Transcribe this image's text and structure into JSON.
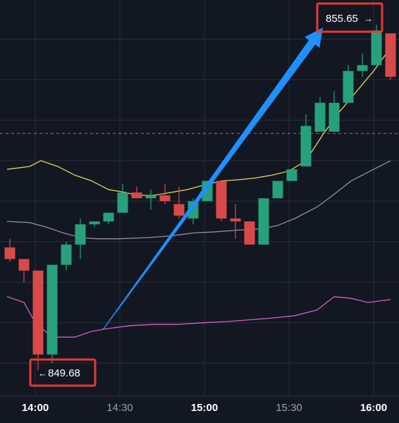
{
  "colors": {
    "background": "#131722",
    "grid": "#2a2e39",
    "up": "#26a17b",
    "down": "#d84a4a",
    "upper_line": "#e3d75a",
    "middle_line": "#8f8fa0",
    "lower_line": "#d25fc0",
    "arrow": "#1e90ff",
    "annotation_box": "#e53935",
    "text": "#ffffff",
    "axis_text": "#9aa0ad",
    "reference_line": "#d84a4a"
  },
  "annotations": {
    "high_label": "855.65",
    "high_arrow": "→",
    "low_label": "849.68",
    "low_arrow": "←"
  },
  "chart_data": {
    "type": "candlestick",
    "title": "",
    "xlabel": "",
    "ylabel": "",
    "x_ticks": [
      "14:00",
      "14:30",
      "15:00",
      "15:30",
      "16:00"
    ],
    "x_tick_bold": [
      true,
      false,
      true,
      false,
      true
    ],
    "x_range": [
      "13:50",
      "16:06"
    ],
    "y_range": [
      849.2,
      856.4
    ],
    "grid": true,
    "reference_line": 853.77,
    "candles": [
      {
        "t": "13:51",
        "o": 851.8,
        "h": 851.95,
        "l": 851.55,
        "c": 851.6
      },
      {
        "t": "13:56",
        "o": 851.6,
        "h": 851.6,
        "l": 851.2,
        "c": 851.4
      },
      {
        "t": "14:01",
        "o": 851.4,
        "h": 851.4,
        "l": 849.68,
        "c": 849.95
      },
      {
        "t": "14:06",
        "o": 849.95,
        "h": 851.5,
        "l": 849.8,
        "c": 851.5
      },
      {
        "t": "14:11",
        "o": 851.5,
        "h": 851.9,
        "l": 851.4,
        "c": 851.85
      },
      {
        "t": "14:16",
        "o": 851.85,
        "h": 852.3,
        "l": 851.6,
        "c": 852.2
      },
      {
        "t": "14:21",
        "o": 852.2,
        "h": 852.25,
        "l": 852.15,
        "c": 852.25
      },
      {
        "t": "14:26",
        "o": 852.25,
        "h": 852.4,
        "l": 852.2,
        "c": 852.4
      },
      {
        "t": "14:31",
        "o": 852.4,
        "h": 852.9,
        "l": 852.4,
        "c": 852.75
      },
      {
        "t": "14:36",
        "o": 852.75,
        "h": 852.85,
        "l": 852.65,
        "c": 852.65
      },
      {
        "t": "14:41",
        "o": 852.65,
        "h": 852.8,
        "l": 852.45,
        "c": 852.7
      },
      {
        "t": "14:46",
        "o": 852.7,
        "h": 852.9,
        "l": 852.55,
        "c": 852.6
      },
      {
        "t": "14:51",
        "o": 852.55,
        "h": 852.85,
        "l": 852.3,
        "c": 852.35
      },
      {
        "t": "14:56",
        "o": 852.3,
        "h": 852.65,
        "l": 852.2,
        "c": 852.6
      },
      {
        "t": "15:01",
        "o": 852.6,
        "h": 852.95,
        "l": 852.6,
        "c": 852.95
      },
      {
        "t": "15:06",
        "o": 852.95,
        "h": 852.95,
        "l": 852.25,
        "c": 852.3
      },
      {
        "t": "15:11",
        "o": 852.3,
        "h": 852.55,
        "l": 851.95,
        "c": 852.25
      },
      {
        "t": "15:16",
        "o": 852.25,
        "h": 852.25,
        "l": 851.85,
        "c": 851.85
      },
      {
        "t": "15:21",
        "o": 851.85,
        "h": 852.65,
        "l": 851.85,
        "c": 852.65
      },
      {
        "t": "15:26",
        "o": 852.65,
        "h": 852.95,
        "l": 852.65,
        "c": 852.95
      },
      {
        "t": "15:31",
        "o": 852.95,
        "h": 853.15,
        "l": 852.95,
        "c": 853.15
      },
      {
        "t": "15:36",
        "o": 853.2,
        "h": 854.1,
        "l": 853.2,
        "c": 853.9
      },
      {
        "t": "15:41",
        "o": 853.8,
        "h": 854.4,
        "l": 853.8,
        "c": 854.3
      },
      {
        "t": "15:46",
        "o": 853.8,
        "h": 854.5,
        "l": 853.8,
        "c": 854.3
      },
      {
        "t": "15:51",
        "o": 854.3,
        "h": 854.95,
        "l": 854.3,
        "c": 854.85
      },
      {
        "t": "15:56",
        "o": 854.85,
        "h": 855.15,
        "l": 854.75,
        "c": 854.95
      },
      {
        "t": "16:01",
        "o": 854.95,
        "h": 855.65,
        "l": 854.95,
        "c": 855.55
      },
      {
        "t": "16:06",
        "o": 855.5,
        "h": 855.5,
        "l": 854.7,
        "c": 854.75
      }
    ],
    "series": [
      {
        "color_key": "upper_line",
        "points": [
          [
            "13:50",
            853.15
          ],
          [
            "13:58",
            853.2
          ],
          [
            "14:02",
            853.3
          ],
          [
            "14:08",
            853.2
          ],
          [
            "14:14",
            853.05
          ],
          [
            "14:20",
            852.95
          ],
          [
            "14:26",
            852.8
          ],
          [
            "14:32",
            852.75
          ],
          [
            "14:36",
            852.7
          ],
          [
            "14:42",
            852.7
          ],
          [
            "14:48",
            852.75
          ],
          [
            "14:54",
            852.8
          ],
          [
            "15:00",
            852.88
          ],
          [
            "15:06",
            852.95
          ],
          [
            "15:12",
            852.97
          ],
          [
            "15:18",
            853.0
          ],
          [
            "15:24",
            853.05
          ],
          [
            "15:30",
            853.12
          ],
          [
            "15:36",
            853.3
          ],
          [
            "15:42",
            853.75
          ],
          [
            "15:48",
            854.15
          ],
          [
            "15:54",
            854.5
          ],
          [
            "16:00",
            854.85
          ],
          [
            "16:06",
            855.25
          ]
        ]
      },
      {
        "color_key": "middle_line",
        "points": [
          [
            "13:50",
            852.25
          ],
          [
            "13:58",
            852.23
          ],
          [
            "14:04",
            852.15
          ],
          [
            "14:10",
            852.05
          ],
          [
            "14:16",
            851.97
          ],
          [
            "14:22",
            851.95
          ],
          [
            "14:30",
            851.95
          ],
          [
            "14:40",
            851.97
          ],
          [
            "14:48",
            852.0
          ],
          [
            "14:56",
            852.05
          ],
          [
            "15:04",
            852.07
          ],
          [
            "15:12",
            852.1
          ],
          [
            "15:20",
            852.12
          ],
          [
            "15:26",
            852.18
          ],
          [
            "15:32",
            852.3
          ],
          [
            "15:40",
            852.5
          ],
          [
            "15:46",
            852.72
          ],
          [
            "15:52",
            852.95
          ],
          [
            "16:00",
            853.15
          ],
          [
            "16:06",
            853.3
          ]
        ]
      },
      {
        "color_key": "lower_line",
        "points": [
          [
            "13:50",
            850.95
          ],
          [
            "13:56",
            850.85
          ],
          [
            "14:00",
            850.5
          ],
          [
            "14:06",
            850.25
          ],
          [
            "14:14",
            850.25
          ],
          [
            "14:20",
            850.35
          ],
          [
            "14:26",
            850.4
          ],
          [
            "14:34",
            850.45
          ],
          [
            "14:42",
            850.47
          ],
          [
            "14:50",
            850.47
          ],
          [
            "15:00",
            850.5
          ],
          [
            "15:08",
            850.52
          ],
          [
            "15:16",
            850.55
          ],
          [
            "15:24",
            850.58
          ],
          [
            "15:32",
            850.62
          ],
          [
            "15:40",
            850.72
          ],
          [
            "15:46",
            850.95
          ],
          [
            "15:52",
            850.92
          ],
          [
            "15:58",
            850.85
          ],
          [
            "16:06",
            850.9
          ]
        ]
      }
    ],
    "arrow": {
      "from": [
        "14:24",
        850.38
      ],
      "to": [
        "15:42",
        855.6
      ]
    }
  }
}
